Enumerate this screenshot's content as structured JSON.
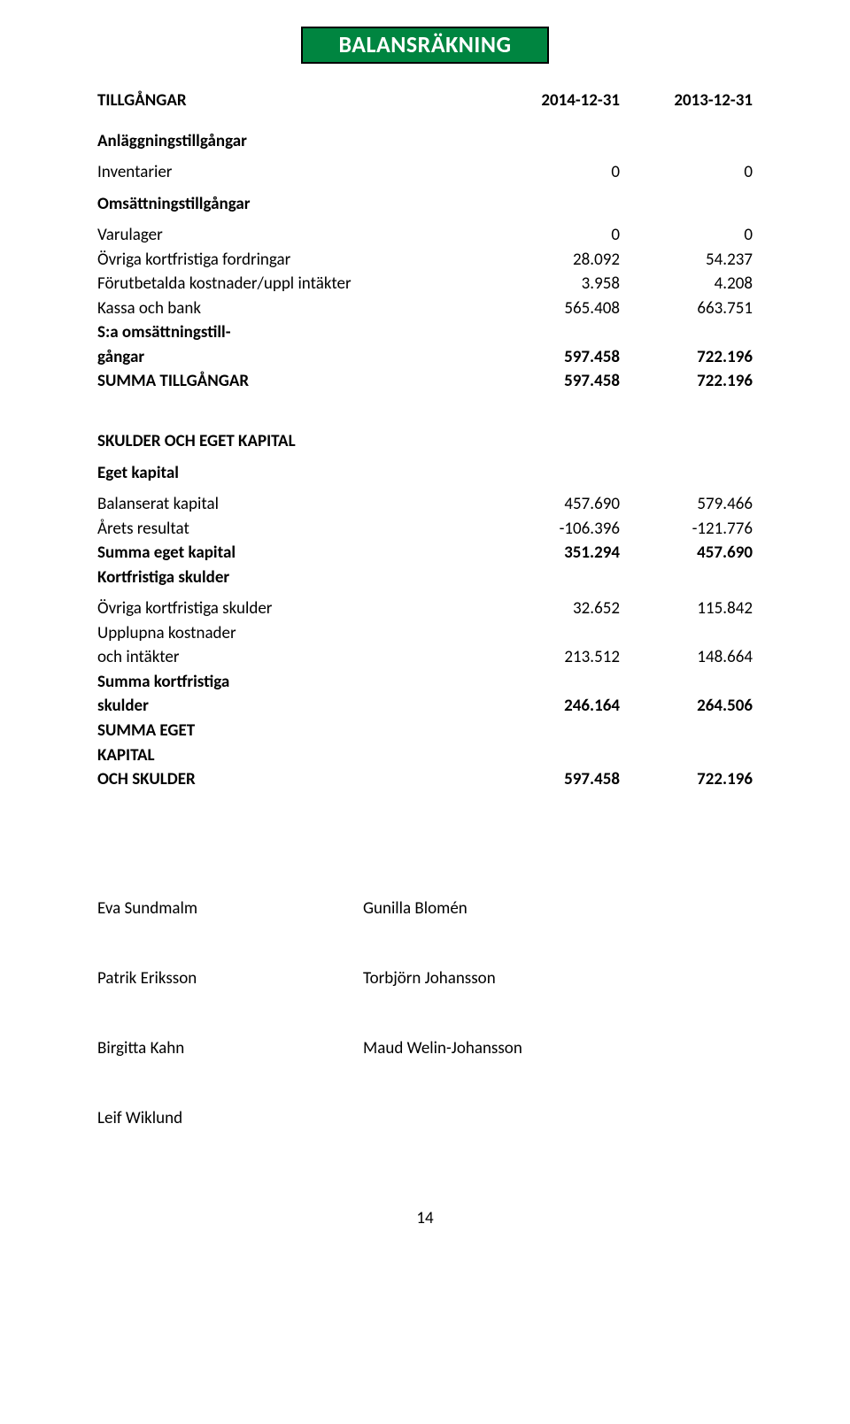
{
  "title": "BALANSRÄKNING",
  "colors": {
    "banner_bg": "#008540",
    "banner_text": "#ffffff",
    "banner_border": "#000000",
    "page_bg": "#ffffff",
    "text": "#000000"
  },
  "headers": {
    "assets": "TILLGÅNGAR",
    "col_a": "2014-12-31",
    "col_b": "2013-12-31"
  },
  "assets": {
    "fixed_heading": "Anläggningstillgångar",
    "inventarier": {
      "label": "Inventarier",
      "a": "0",
      "b": "0"
    },
    "current_heading": "Omsättningstillgångar",
    "varulager": {
      "label": "Varulager",
      "a": "0",
      "b": "0"
    },
    "ovriga_fordr": {
      "label": "Övriga kortfristiga fordringar",
      "a": "28.092",
      "b": "54.237"
    },
    "forutbetalda": {
      "label": "Förutbetalda kostnader/uppl intäkter",
      "a": "3.958",
      "b": "4.208"
    },
    "kassa": {
      "label": "Kassa och bank",
      "a": "565.408",
      "b": "663.751"
    },
    "sa_oms_l1": "S:a omsättningstill-",
    "sa_oms_l2": "gångar",
    "sa_oms": {
      "a": "597.458",
      "b": "722.196"
    },
    "summa_tillg": {
      "label": "SUMMA TILLGÅNGAR",
      "a": "597.458",
      "b": "722.196"
    }
  },
  "equity": {
    "heading": "SKULDER OCH EGET KAPITAL",
    "eget_kapital": "Eget kapital",
    "balanserat": {
      "label": "Balanserat kapital",
      "a": "457.690",
      "b": "579.466"
    },
    "arets": {
      "label": "Årets resultat",
      "a": "-106.396",
      "b": "-121.776"
    },
    "summa_eget": {
      "label": "Summa eget kapital",
      "a": "351.294",
      "b": "457.690"
    },
    "kortfr_heading": "Kortfristiga skulder",
    "ovriga_skulder": {
      "label": "Övriga kortfristiga skulder",
      "a": "32.652",
      "b": "115.842"
    },
    "upplupna_l1": "Upplupna kostnader",
    "upplupna_l2": "och intäkter",
    "upplupna": {
      "a": "213.512",
      "b": "148.664"
    },
    "summa_kortfr_l1": "Summa kortfristiga",
    "summa_kortfr_l2": "skulder",
    "summa_kortfr": {
      "a": "246.164",
      "b": "264.506"
    },
    "summa_eget_l1": "SUMMA EGET",
    "summa_eget_l2": "KAPITAL",
    "summa_eget_l3": "OCH SKULDER",
    "summa_eget_sk": {
      "a": "597.458",
      "b": "722.196"
    }
  },
  "signatures": {
    "p1a": "Eva Sundmalm",
    "p1b": "Gunilla Blomén",
    "p2a": "Patrik Eriksson",
    "p2b": "Torbjörn Johansson",
    "p3a": "Birgitta Kahn",
    "p3b": "Maud Welin-Johansson",
    "p4a": "Leif Wiklund"
  },
  "page_number": "14"
}
